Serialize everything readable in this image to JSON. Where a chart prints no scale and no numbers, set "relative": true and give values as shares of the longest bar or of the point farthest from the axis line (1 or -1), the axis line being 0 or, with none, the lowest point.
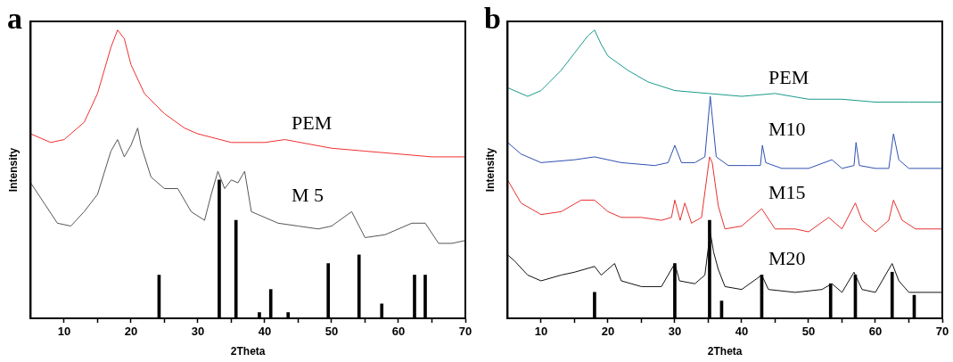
{
  "chart_data": [
    {
      "type": "line",
      "title": "a",
      "xlabel": "2Theta",
      "ylabel": "Intensity",
      "relative": true,
      "xlim": [
        5,
        70
      ],
      "xticks": [
        10,
        {
          "value": 15,
          "label": null
        },
        20,
        {
          "value": 25,
          "label": null
        },
        30,
        {
          "value": 35,
          "label": null
        },
        40,
        {
          "value": 45,
          "label": null
        },
        50,
        {
          "value": 55,
          "label": null
        },
        60,
        {
          "value": 65,
          "label": null
        },
        70
      ],
      "tick_labels": "x",
      "grid": false,
      "legend": false,
      "marker": "none",
      "line_style": "solid",
      "series": [
        {
          "name": "PEM",
          "color": "#f03030",
          "x": [
            5,
            8,
            10,
            13,
            15,
            17,
            18,
            19,
            20,
            22,
            25,
            28,
            30,
            35,
            40,
            43,
            50,
            55,
            60,
            65,
            70
          ],
          "values": [
            0.64,
            0.61,
            0.62,
            0.68,
            0.78,
            0.94,
            1.0,
            0.97,
            0.88,
            0.78,
            0.71,
            0.66,
            0.64,
            0.61,
            0.61,
            0.62,
            0.59,
            0.58,
            0.57,
            0.56,
            0.56
          ]
        },
        {
          "name": "M 5",
          "color": "#555555",
          "x": [
            5,
            7,
            9,
            11,
            13,
            15,
            17,
            18,
            19,
            20,
            21,
            21.5,
            23,
            25,
            27,
            29,
            31,
            32,
            33,
            34,
            35,
            36,
            37,
            38,
            40,
            42,
            45,
            48,
            50,
            53,
            55,
            58,
            60,
            62,
            64,
            66,
            68,
            70
          ],
          "values": [
            0.47,
            0.4,
            0.33,
            0.32,
            0.37,
            0.43,
            0.58,
            0.62,
            0.56,
            0.6,
            0.66,
            0.6,
            0.49,
            0.45,
            0.45,
            0.37,
            0.34,
            0.43,
            0.51,
            0.45,
            0.48,
            0.47,
            0.51,
            0.37,
            0.35,
            0.33,
            0.32,
            0.31,
            0.32,
            0.37,
            0.28,
            0.29,
            0.31,
            0.33,
            0.33,
            0.26,
            0.26,
            0.27
          ]
        },
        {
          "type": "bar",
          "color": "#000000",
          "x": [
            24.2,
            33.2,
            35.7,
            39.2,
            40.9,
            43.5,
            49.5,
            54.1,
            57.5,
            62.4,
            64
          ],
          "values": [
            0.15,
            0.48,
            0.34,
            0.02,
            0.1,
            0.02,
            0.19,
            0.22,
            0.05,
            0.15,
            0.15
          ]
        }
      ]
    },
    {
      "type": "line",
      "title": "b",
      "xlabel": "2Theta",
      "ylabel": "Intensity",
      "relative": true,
      "xlim": [
        5,
        70
      ],
      "xticks": [
        10,
        {
          "value": 15,
          "label": null
        },
        20,
        {
          "value": 25,
          "label": null
        },
        30,
        {
          "value": 35,
          "label": null
        },
        40,
        {
          "value": 45,
          "label": null
        },
        50,
        {
          "value": 55,
          "label": null
        },
        60,
        {
          "value": 65,
          "label": null
        },
        70
      ],
      "tick_labels": "x",
      "grid": false,
      "legend": false,
      "marker": "none",
      "line_style": "solid",
      "series": [
        {
          "name": "PEM",
          "color": "#1a9a8a",
          "x": [
            5,
            8,
            10,
            13,
            15,
            17,
            18,
            19,
            20,
            23,
            26,
            30,
            35,
            40,
            45,
            50,
            55,
            60,
            65,
            70
          ],
          "values": [
            0.8,
            0.77,
            0.79,
            0.86,
            0.92,
            0.98,
            1.0,
            0.95,
            0.91,
            0.86,
            0.82,
            0.79,
            0.78,
            0.77,
            0.78,
            0.76,
            0.76,
            0.75,
            0.75,
            0.75
          ]
        },
        {
          "name": "M10",
          "color": "#3050b0",
          "x": [
            5,
            7,
            10,
            15,
            18,
            22,
            27,
            29,
            30,
            31,
            33,
            34.5,
            35.3,
            35.6,
            36.2,
            38,
            41,
            42.8,
            43.1,
            43.6,
            46,
            50,
            53.5,
            55,
            56.8,
            57.1,
            57.6,
            60,
            62,
            62.7,
            63.5,
            65,
            70
          ],
          "values": [
            0.61,
            0.57,
            0.54,
            0.55,
            0.56,
            0.54,
            0.53,
            0.54,
            0.6,
            0.54,
            0.54,
            0.56,
            0.77,
            0.7,
            0.56,
            0.53,
            0.53,
            0.53,
            0.6,
            0.54,
            0.52,
            0.52,
            0.55,
            0.52,
            0.53,
            0.61,
            0.53,
            0.52,
            0.52,
            0.64,
            0.55,
            0.52,
            0.52
          ]
        },
        {
          "name": "M15",
          "color": "#e83030",
          "x": [
            5,
            7,
            10,
            13,
            16,
            18,
            20,
            22,
            25,
            28,
            29.5,
            30,
            30.8,
            31.5,
            32.5,
            34,
            35.2,
            35.6,
            36.5,
            37.5,
            40,
            43,
            45,
            48,
            50,
            53,
            55,
            57,
            58,
            60,
            62,
            62.7,
            64,
            66,
            70
          ],
          "values": [
            0.48,
            0.4,
            0.36,
            0.37,
            0.41,
            0.41,
            0.37,
            0.35,
            0.35,
            0.34,
            0.35,
            0.41,
            0.34,
            0.4,
            0.33,
            0.35,
            0.56,
            0.54,
            0.39,
            0.31,
            0.32,
            0.38,
            0.31,
            0.31,
            0.3,
            0.35,
            0.31,
            0.4,
            0.34,
            0.3,
            0.34,
            0.41,
            0.34,
            0.31,
            0.31
          ]
        },
        {
          "name": "M20",
          "color": "#111111",
          "x": [
            5,
            6,
            8,
            10,
            13,
            15,
            18,
            19,
            21,
            22,
            25,
            28,
            30,
            30.7,
            33,
            34.5,
            35.3,
            35.8,
            36.5,
            37.5,
            40,
            43,
            44,
            48,
            52,
            53.5,
            55,
            56.8,
            58,
            60,
            62.5,
            63.5,
            65,
            70
          ],
          "values": [
            0.22,
            0.2,
            0.15,
            0.13,
            0.15,
            0.16,
            0.18,
            0.15,
            0.19,
            0.13,
            0.11,
            0.11,
            0.19,
            0.13,
            0.12,
            0.15,
            0.3,
            0.23,
            0.17,
            0.11,
            0.1,
            0.15,
            0.1,
            0.09,
            0.1,
            0.12,
            0.09,
            0.16,
            0.1,
            0.09,
            0.19,
            0.13,
            0.09,
            0.09
          ]
        },
        {
          "type": "bar",
          "color": "#000000",
          "x": [
            18,
            30,
            35.2,
            37,
            43,
            53.3,
            57,
            62.5,
            65.8
          ],
          "values": [
            0.09,
            0.19,
            0.34,
            0.06,
            0.15,
            0.12,
            0.15,
            0.16,
            0.08
          ]
        }
      ]
    }
  ]
}
